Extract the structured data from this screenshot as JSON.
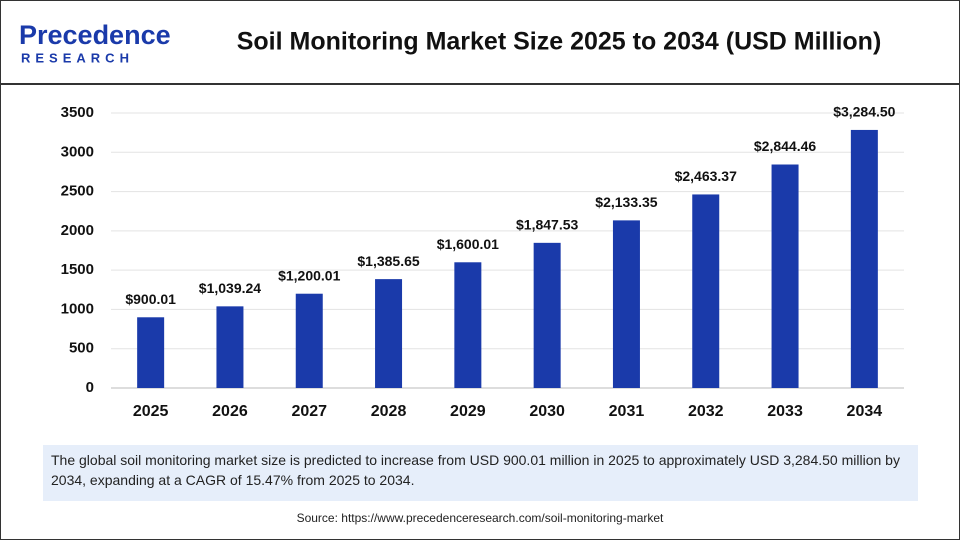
{
  "header": {
    "logo_name": "Precedence",
    "logo_tagline": "RESEARCH"
  },
  "chart_data": {
    "type": "bar",
    "title": "Soil Monitoring Market Size 2025 to 2034 (USD Million)",
    "categories": [
      "2025",
      "2026",
      "2027",
      "2028",
      "2029",
      "2030",
      "2031",
      "2032",
      "2033",
      "2034"
    ],
    "values": [
      900.01,
      1039.24,
      1200.01,
      1385.65,
      1600.01,
      1847.53,
      2133.35,
      2463.37,
      2844.46,
      3284.5
    ],
    "value_labels": [
      "$900.01",
      "$1,039.24",
      "$1,200.01",
      "$1,385.65",
      "$1,600.01",
      "$1,847.53",
      "$2,133.35",
      "$2,463.37",
      "$2,844.46",
      "$3,284.50"
    ],
    "color": "#1a3aaa",
    "ylim": [
      0,
      3500
    ],
    "yticks": [
      0,
      500,
      1000,
      1500,
      2000,
      2500,
      3000,
      3500
    ],
    "grid": true
  },
  "description": "The global soil monitoring market size is predicted to increase from USD 900.01 million in 2025 to approximately USD 3,284.50 million by 2034, expanding at a CAGR of 15.47% from 2025 to 2034.",
  "source": "Source: https://www.precedenceresearch.com/soil-monitoring-market"
}
